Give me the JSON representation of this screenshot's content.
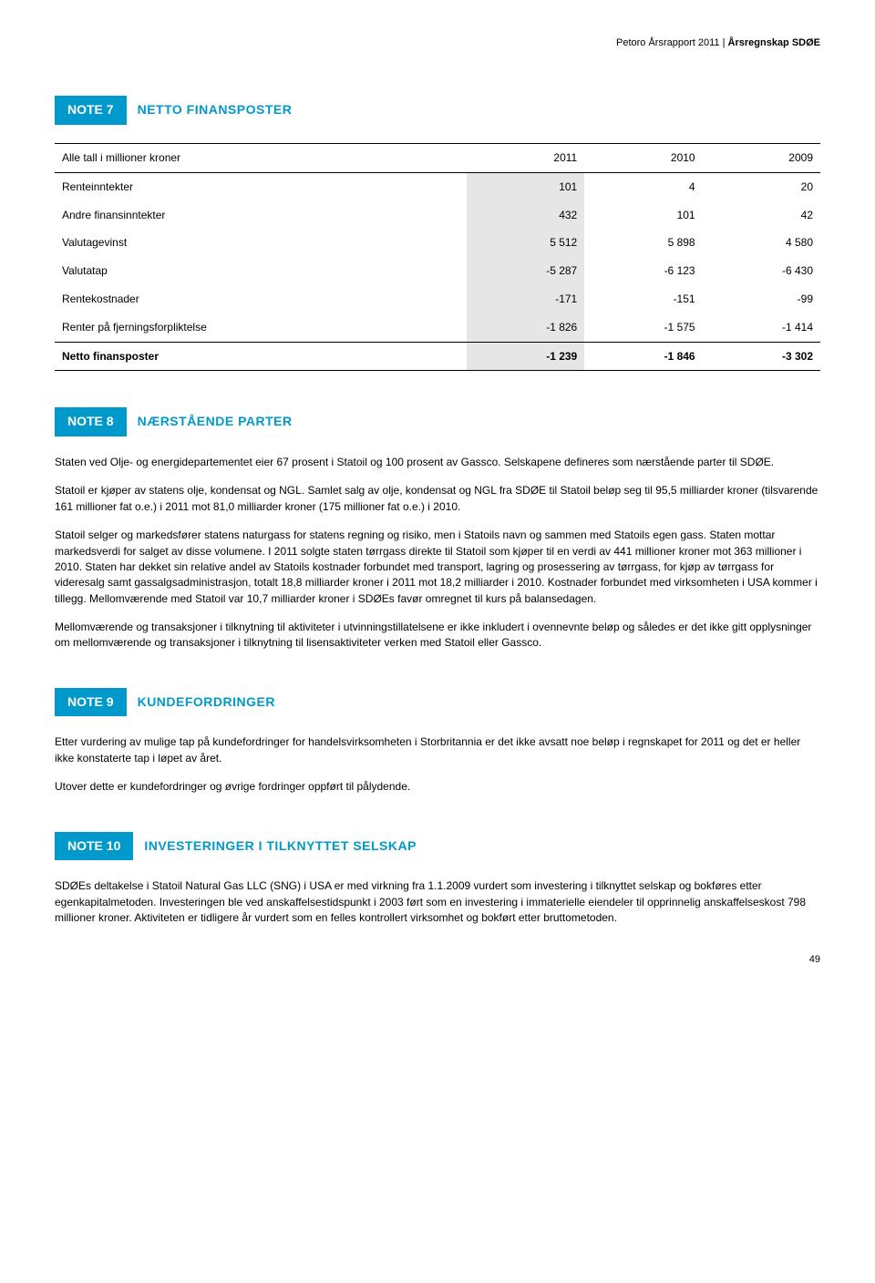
{
  "header": {
    "left": "Petoro Årsrapport 2011",
    "sep": " | ",
    "right": "Årsregnskap SDØE"
  },
  "note7": {
    "badge": "NOTE 7",
    "title": "NETTO FINANSPOSTER",
    "table": {
      "col_header": "Alle tall i millioner kroner",
      "years": [
        "2011",
        "2010",
        "2009"
      ],
      "rows": [
        {
          "label": "Renteinntekter",
          "v": [
            "101",
            "4",
            "20"
          ]
        },
        {
          "label": "Andre finansinntekter",
          "v": [
            "432",
            "101",
            "42"
          ]
        },
        {
          "label": "Valutagevinst",
          "v": [
            "5 512",
            "5 898",
            "4 580"
          ]
        },
        {
          "label": "Valutatap",
          "v": [
            "-5 287",
            "-6 123",
            "-6 430"
          ]
        },
        {
          "label": "Rentekostnader",
          "v": [
            "-171",
            "-151",
            "-99"
          ]
        },
        {
          "label": "Renter på fjerningsforpliktelse",
          "v": [
            "-1 826",
            "-1 575",
            "-1 414"
          ]
        }
      ],
      "total": {
        "label": "Netto finansposter",
        "v": [
          "-1 239",
          "-1 846",
          "-3 302"
        ]
      }
    }
  },
  "note8": {
    "badge": "NOTE 8",
    "title": "NÆRSTÅENDE PARTER",
    "p1": "Staten ved Olje- og energidepartementet eier 67 prosent i Statoil og 100 prosent av Gassco. Selskapene defineres som nærstående parter til SDØE.",
    "p2": "Statoil er kjøper av statens olje, kondensat og NGL. Samlet salg av olje, kondensat og NGL fra SDØE til Statoil beløp seg til 95,5 milliarder kroner (tilsvarende 161 millioner fat o.e.) i 2011 mot 81,0 milliarder kroner (175 millioner fat o.e.) i 2010.",
    "p3": "Statoil selger og markedsfører statens naturgass for statens regning og risiko, men i Statoils navn og sammen med Statoils egen gass. Staten mottar markedsverdi for salget av disse volumene. I 2011 solgte staten tørrgass direkte til Statoil som kjøper til en verdi av 441 millioner kroner mot 363 millioner i 2010. Staten har dekket sin relative andel av Statoils kostnader forbundet med transport, lagring og prosessering av tørrgass, for kjøp av tørrgass for videresalg samt gassalgsadministrasjon, totalt 18,8 milliarder kroner i 2011 mot 18,2 milliarder i 2010. Kostnader forbundet med virksomheten i USA kommer i tillegg. Mellomværende med Statoil var 10,7 milliarder kroner i SDØEs favør omregnet til kurs på balansedagen.",
    "p4": "Mellomværende og transaksjoner i tilknytning til aktiviteter i utvinningstillatelsene er ikke inkludert i ovennevnte beløp og således er det ikke gitt opplysninger om mellomværende og transaksjoner i tilknytning til lisensaktiviteter verken med Statoil eller Gassco."
  },
  "note9": {
    "badge": "NOTE 9",
    "title": "KUNDEFORDRINGER",
    "p1": "Etter vurdering av mulige tap på kundefordringer for handelsvirksomheten i Storbritannia er det ikke avsatt noe beløp i regnskapet for 2011 og det er heller ikke konstaterte tap i løpet av året.",
    "p2": "Utover dette er kundefordringer og øvrige fordringer oppført til pålydende."
  },
  "note10": {
    "badge": "NOTE 10",
    "title": "INVESTERINGER I TILKNYTTET SELSKAP",
    "p1": "SDØEs deltakelse i Statoil Natural Gas LLC (SNG) i USA er med virkning fra 1.1.2009 vurdert som investering i tilknyttet selskap og bokføres etter egenkapitalmetoden. Investeringen ble ved anskaffelsestidspunkt i 2003 ført som en investering i immaterielle eiendeler til opprinnelig anskaffelseskost 798 millioner kroner. Aktiviteten er tidligere år vurdert som en felles kontrollert virksomhet og bokført etter bruttometoden."
  },
  "page_number": "49"
}
